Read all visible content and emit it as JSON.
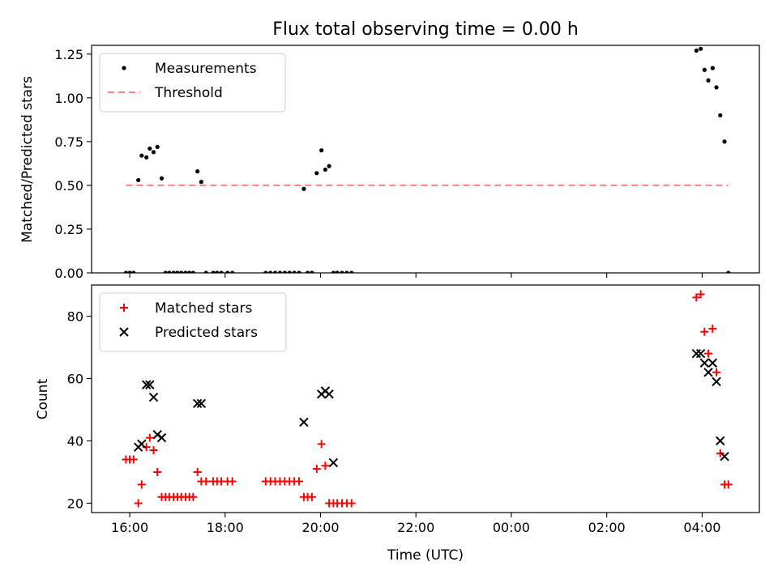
{
  "title": "Flux total observing time = 0.00 h",
  "chart_data": [
    {
      "type": "scatter",
      "ylabel": "Matched/Predicted stars",
      "xlim": [
        15.2,
        29.2
      ],
      "ylim": [
        0,
        1.3
      ],
      "xticks": [
        16,
        18,
        20,
        22,
        24,
        26,
        28
      ],
      "yticks": [
        0.0,
        0.25,
        0.5,
        0.75,
        1.0,
        1.25
      ],
      "ytick_labels": [
        "0.00",
        "0.25",
        "0.50",
        "0.75",
        "1.00",
        "1.25"
      ],
      "legend_position": "upper-left",
      "series": [
        {
          "name": "Measurements",
          "marker": "dot",
          "color": "#000000",
          "x": [
            15.92,
            16.0,
            16.08,
            16.18,
            16.25,
            16.35,
            16.42,
            16.5,
            16.58,
            16.67,
            16.75,
            16.83,
            16.92,
            17.0,
            17.08,
            17.17,
            17.25,
            17.33,
            17.42,
            17.5,
            17.6,
            17.75,
            17.83,
            17.92,
            18.05,
            18.15,
            18.85,
            18.95,
            19.05,
            19.15,
            19.25,
            19.35,
            19.45,
            19.55,
            19.65,
            19.73,
            19.82,
            19.92,
            20.02,
            20.1,
            20.18,
            20.27,
            20.35,
            20.45,
            20.55,
            20.65,
            27.88,
            27.97,
            28.05,
            28.13,
            28.22,
            28.3,
            28.38,
            28.47,
            28.55
          ],
          "y": [
            0.0,
            0.0,
            0.0,
            0.53,
            0.67,
            0.66,
            0.71,
            0.69,
            0.72,
            0.54,
            0.0,
            0.0,
            0.0,
            0.0,
            0.0,
            0.0,
            0.0,
            0.0,
            0.58,
            0.52,
            0.0,
            0.0,
            0.0,
            0.0,
            0.0,
            0.0,
            0.0,
            0.0,
            0.0,
            0.0,
            0.0,
            0.0,
            0.0,
            0.0,
            0.48,
            0.0,
            0.0,
            0.57,
            0.7,
            0.59,
            0.61,
            0.0,
            0.0,
            0.0,
            0.0,
            0.0,
            1.27,
            1.28,
            1.16,
            1.1,
            1.17,
            1.06,
            0.9,
            0.75,
            0.0
          ]
        },
        {
          "name": "Threshold",
          "type": "line",
          "dash": "dashed",
          "color": "#ff7f7f",
          "x": [
            15.92,
            28.55
          ],
          "y": [
            0.5,
            0.5
          ]
        }
      ]
    },
    {
      "type": "scatter",
      "xlabel": "Time (UTC)",
      "ylabel": "Count",
      "xlim": [
        15.2,
        29.2
      ],
      "ylim": [
        17,
        90
      ],
      "xticks": [
        16,
        18,
        20,
        22,
        24,
        26,
        28
      ],
      "xtick_labels": [
        "16:00",
        "18:00",
        "20:00",
        "22:00",
        "00:00",
        "02:00",
        "04:00"
      ],
      "yticks": [
        20,
        40,
        60,
        80
      ],
      "ytick_labels": [
        "20",
        "40",
        "60",
        "80"
      ],
      "legend_position": "upper-left",
      "series": [
        {
          "name": "Matched stars",
          "marker": "plus",
          "color": "#ff0000",
          "x": [
            15.92,
            16.0,
            16.08,
            16.18,
            16.25,
            16.35,
            16.42,
            16.5,
            16.58,
            16.67,
            16.75,
            16.83,
            16.92,
            17.0,
            17.08,
            17.17,
            17.25,
            17.33,
            17.42,
            17.5,
            17.6,
            17.75,
            17.83,
            17.92,
            18.05,
            18.15,
            18.85,
            18.95,
            19.05,
            19.15,
            19.25,
            19.35,
            19.45,
            19.55,
            19.65,
            19.73,
            19.82,
            19.92,
            20.02,
            20.1,
            20.18,
            20.27,
            20.35,
            20.45,
            20.55,
            20.65,
            27.88,
            27.97,
            28.05,
            28.13,
            28.22,
            28.3,
            28.38,
            28.47,
            28.55
          ],
          "y": [
            34,
            34,
            34,
            20,
            26,
            38,
            41,
            37,
            30,
            22,
            22,
            22,
            22,
            22,
            22,
            22,
            22,
            22,
            30,
            27,
            27,
            27,
            27,
            27,
            27,
            27,
            27,
            27,
            27,
            27,
            27,
            27,
            27,
            27,
            22,
            22,
            22,
            31,
            39,
            32,
            20,
            20,
            20,
            20,
            20,
            20,
            86,
            87,
            75,
            68,
            76,
            62,
            36,
            26,
            26
          ]
        },
        {
          "name": "Predicted stars",
          "marker": "x",
          "color": "#000000",
          "x": [
            16.18,
            16.25,
            16.35,
            16.42,
            16.5,
            16.58,
            16.67,
            17.42,
            17.5,
            19.65,
            20.02,
            20.1,
            20.18,
            20.27,
            27.88,
            27.97,
            28.05,
            28.13,
            28.22,
            28.3,
            28.38,
            28.47
          ],
          "y": [
            38,
            39,
            58,
            58,
            54,
            42,
            41,
            52,
            52,
            46,
            55,
            56,
            55,
            33,
            68,
            68,
            65,
            62,
            65,
            59,
            40,
            35
          ]
        }
      ]
    }
  ]
}
